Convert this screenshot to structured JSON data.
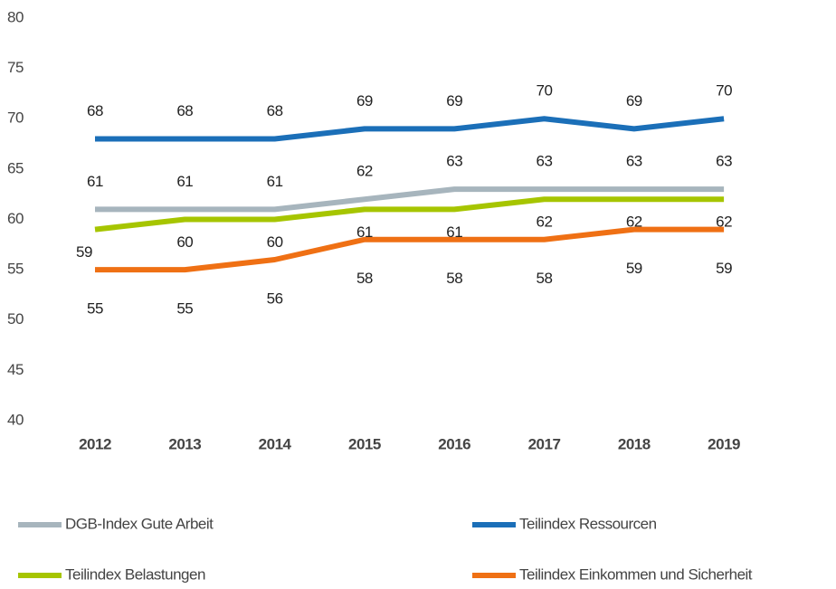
{
  "chart_data": {
    "type": "line",
    "categories": [
      "2012",
      "2013",
      "2014",
      "2015",
      "2016",
      "2017",
      "2018",
      "2019"
    ],
    "series": [
      {
        "name": "DGB-Index Gute Arbeit",
        "color": "#a7b5bd",
        "values": [
          61,
          61,
          61,
          62,
          63,
          63,
          63,
          63
        ]
      },
      {
        "name": "Teilindex Ressourcen",
        "color": "#1b6fb8",
        "values": [
          68,
          68,
          68,
          69,
          69,
          70,
          69,
          70
        ]
      },
      {
        "name": "Teilindex Belastungen",
        "color": "#a6c500",
        "values": [
          59,
          60,
          60,
          61,
          61,
          62,
          62,
          62
        ]
      },
      {
        "name": "Teilindex Einkommen und Sicherheit",
        "color": "#ef7014",
        "values": [
          55,
          55,
          56,
          58,
          58,
          58,
          59,
          59
        ]
      }
    ],
    "ylim": [
      40,
      80
    ],
    "yticks": [
      40,
      45,
      50,
      55,
      60,
      65,
      70,
      75,
      80
    ],
    "grid": false,
    "legend": "bottom"
  }
}
